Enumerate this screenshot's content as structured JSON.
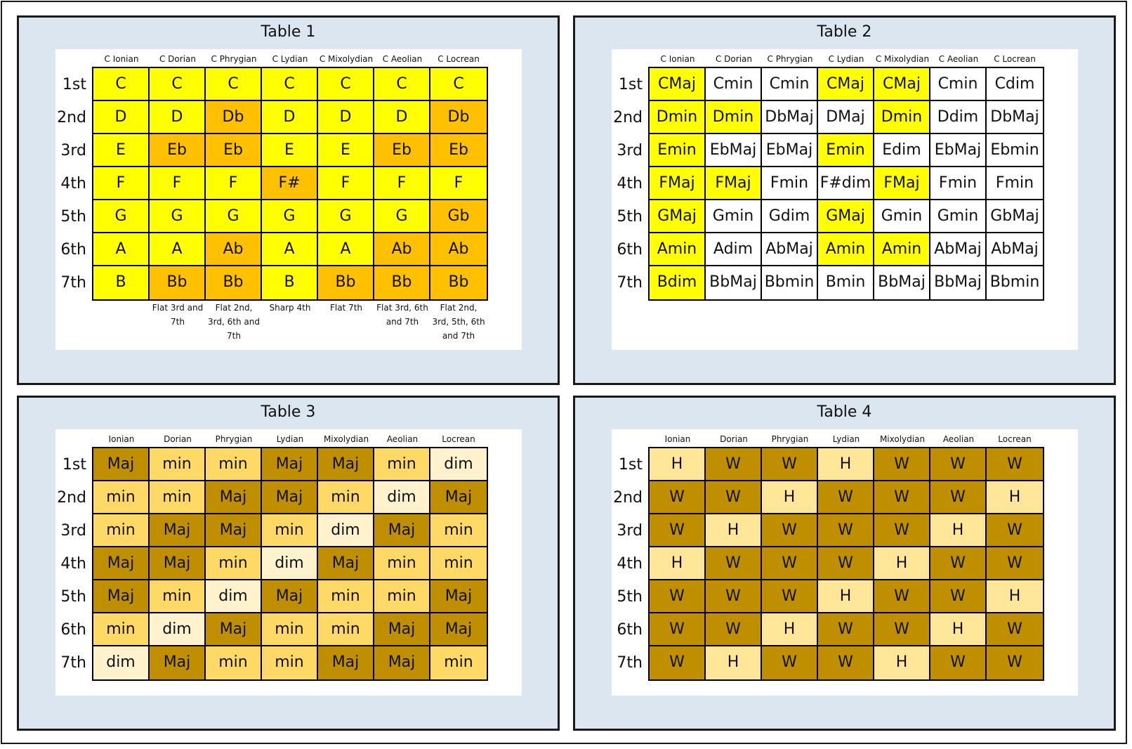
{
  "colors": {
    "yellow": "#ffff00",
    "orange": "#ffc000",
    "white": "#ffffff",
    "maj": "#bf8f00",
    "min": "#ffd966",
    "dim": "#fff2cc",
    "whole": "#bf8f00",
    "half": "#ffe699",
    "panel_bg": "#dce6f1"
  },
  "row_labels": [
    "1st",
    "2nd",
    "3rd",
    "4th",
    "5th",
    "6th",
    "7th"
  ],
  "tables": [
    {
      "id": "table-1",
      "title": "Table 1",
      "columns": [
        "C Ionian",
        "C Dorian",
        "C Phrygian",
        "C Lydian",
        "C Mixolydian",
        "C Aeolian",
        "C Locrean"
      ],
      "rows": [
        [
          {
            "v": "C",
            "c": "yellow"
          },
          {
            "v": "C",
            "c": "yellow"
          },
          {
            "v": "C",
            "c": "yellow"
          },
          {
            "v": "C",
            "c": "yellow"
          },
          {
            "v": "C",
            "c": "yellow"
          },
          {
            "v": "C",
            "c": "yellow"
          },
          {
            "v": "C",
            "c": "yellow"
          }
        ],
        [
          {
            "v": "D",
            "c": "yellow"
          },
          {
            "v": "D",
            "c": "yellow"
          },
          {
            "v": "Db",
            "c": "orange"
          },
          {
            "v": "D",
            "c": "yellow"
          },
          {
            "v": "D",
            "c": "yellow"
          },
          {
            "v": "D",
            "c": "yellow"
          },
          {
            "v": "Db",
            "c": "orange"
          }
        ],
        [
          {
            "v": "E",
            "c": "yellow"
          },
          {
            "v": "Eb",
            "c": "orange"
          },
          {
            "v": "Eb",
            "c": "orange"
          },
          {
            "v": "E",
            "c": "yellow"
          },
          {
            "v": "E",
            "c": "yellow"
          },
          {
            "v": "Eb",
            "c": "orange"
          },
          {
            "v": "Eb",
            "c": "orange"
          }
        ],
        [
          {
            "v": "F",
            "c": "yellow"
          },
          {
            "v": "F",
            "c": "yellow"
          },
          {
            "v": "F",
            "c": "yellow"
          },
          {
            "v": "F#",
            "c": "orange"
          },
          {
            "v": "F",
            "c": "yellow"
          },
          {
            "v": "F",
            "c": "yellow"
          },
          {
            "v": "F",
            "c": "yellow"
          }
        ],
        [
          {
            "v": "G",
            "c": "yellow"
          },
          {
            "v": "G",
            "c": "yellow"
          },
          {
            "v": "G",
            "c": "yellow"
          },
          {
            "v": "G",
            "c": "yellow"
          },
          {
            "v": "G",
            "c": "yellow"
          },
          {
            "v": "G",
            "c": "yellow"
          },
          {
            "v": "Gb",
            "c": "orange"
          }
        ],
        [
          {
            "v": "A",
            "c": "yellow"
          },
          {
            "v": "A",
            "c": "yellow"
          },
          {
            "v": "Ab",
            "c": "orange"
          },
          {
            "v": "A",
            "c": "yellow"
          },
          {
            "v": "A",
            "c": "yellow"
          },
          {
            "v": "Ab",
            "c": "orange"
          },
          {
            "v": "Ab",
            "c": "orange"
          }
        ],
        [
          {
            "v": "B",
            "c": "yellow"
          },
          {
            "v": "Bb",
            "c": "orange"
          },
          {
            "v": "Bb",
            "c": "orange"
          },
          {
            "v": "B",
            "c": "yellow"
          },
          {
            "v": "Bb",
            "c": "orange"
          },
          {
            "v": "Bb",
            "c": "orange"
          },
          {
            "v": "Bb",
            "c": "orange"
          }
        ]
      ],
      "notes": [
        "",
        "Flat 3rd and 7th",
        "Flat 2nd, 3rd, 6th and 7th",
        "Sharp 4th",
        "Flat 7th",
        "Flat 3rd, 6th and 7th",
        "Flat 2nd, 3rd, 5th, 6th and 7th"
      ]
    },
    {
      "id": "table-2",
      "title": "Table 2",
      "columns": [
        "C Ionian",
        "C Dorian",
        "C Phrygian",
        "C Lydian",
        "C Mixolydian",
        "C Aeolian",
        "C Locrean"
      ],
      "rows": [
        [
          {
            "v": "CMaj",
            "c": "yellow"
          },
          {
            "v": "Cmin",
            "c": "white"
          },
          {
            "v": "Cmin",
            "c": "white"
          },
          {
            "v": "CMaj",
            "c": "yellow"
          },
          {
            "v": "CMaj",
            "c": "yellow"
          },
          {
            "v": "Cmin",
            "c": "white"
          },
          {
            "v": "Cdim",
            "c": "white"
          }
        ],
        [
          {
            "v": "Dmin",
            "c": "yellow"
          },
          {
            "v": "Dmin",
            "c": "yellow"
          },
          {
            "v": "DbMaj",
            "c": "white"
          },
          {
            "v": "DMaj",
            "c": "white"
          },
          {
            "v": "Dmin",
            "c": "yellow"
          },
          {
            "v": "Ddim",
            "c": "white"
          },
          {
            "v": "DbMaj",
            "c": "white"
          }
        ],
        [
          {
            "v": "Emin",
            "c": "yellow"
          },
          {
            "v": "EbMaj",
            "c": "white"
          },
          {
            "v": "EbMaj",
            "c": "white"
          },
          {
            "v": "Emin",
            "c": "yellow"
          },
          {
            "v": "Edim",
            "c": "white"
          },
          {
            "v": "EbMaj",
            "c": "white"
          },
          {
            "v": "Ebmin",
            "c": "white"
          }
        ],
        [
          {
            "v": "FMaj",
            "c": "yellow"
          },
          {
            "v": "FMaj",
            "c": "yellow"
          },
          {
            "v": "Fmin",
            "c": "white"
          },
          {
            "v": "F#dim",
            "c": "white"
          },
          {
            "v": "FMaj",
            "c": "yellow"
          },
          {
            "v": "Fmin",
            "c": "white"
          },
          {
            "v": "Fmin",
            "c": "white"
          }
        ],
        [
          {
            "v": "GMaj",
            "c": "yellow"
          },
          {
            "v": "Gmin",
            "c": "white"
          },
          {
            "v": "Gdim",
            "c": "white"
          },
          {
            "v": "GMaj",
            "c": "yellow"
          },
          {
            "v": "Gmin",
            "c": "white"
          },
          {
            "v": "Gmin",
            "c": "white"
          },
          {
            "v": "GbMaj",
            "c": "white"
          }
        ],
        [
          {
            "v": "Amin",
            "c": "yellow"
          },
          {
            "v": "Adim",
            "c": "white"
          },
          {
            "v": "AbMaj",
            "c": "white"
          },
          {
            "v": "Amin",
            "c": "yellow"
          },
          {
            "v": "Amin",
            "c": "yellow"
          },
          {
            "v": "AbMaj",
            "c": "white"
          },
          {
            "v": "AbMaj",
            "c": "white"
          }
        ],
        [
          {
            "v": "Bdim",
            "c": "yellow"
          },
          {
            "v": "BbMaj",
            "c": "white"
          },
          {
            "v": "Bbmin",
            "c": "white"
          },
          {
            "v": "Bmin",
            "c": "white"
          },
          {
            "v": "BbMaj",
            "c": "white"
          },
          {
            "v": "BbMaj",
            "c": "white"
          },
          {
            "v": "Bbmin",
            "c": "white"
          }
        ]
      ],
      "notes": []
    },
    {
      "id": "table-3",
      "title": "Table 3",
      "columns": [
        "Ionian",
        "Dorian",
        "Phrygian",
        "Lydian",
        "Mixolydian",
        "Aeolian",
        "Locrean"
      ],
      "rows": [
        [
          {
            "v": "Maj",
            "c": "maj"
          },
          {
            "v": "min",
            "c": "min"
          },
          {
            "v": "min",
            "c": "min"
          },
          {
            "v": "Maj",
            "c": "maj"
          },
          {
            "v": "Maj",
            "c": "maj"
          },
          {
            "v": "min",
            "c": "min"
          },
          {
            "v": "dim",
            "c": "dim"
          }
        ],
        [
          {
            "v": "min",
            "c": "min"
          },
          {
            "v": "min",
            "c": "min"
          },
          {
            "v": "Maj",
            "c": "maj"
          },
          {
            "v": "Maj",
            "c": "maj"
          },
          {
            "v": "min",
            "c": "min"
          },
          {
            "v": "dim",
            "c": "dim"
          },
          {
            "v": "Maj",
            "c": "maj"
          }
        ],
        [
          {
            "v": "min",
            "c": "min"
          },
          {
            "v": "Maj",
            "c": "maj"
          },
          {
            "v": "Maj",
            "c": "maj"
          },
          {
            "v": "min",
            "c": "min"
          },
          {
            "v": "dim",
            "c": "dim"
          },
          {
            "v": "Maj",
            "c": "maj"
          },
          {
            "v": "min",
            "c": "min"
          }
        ],
        [
          {
            "v": "Maj",
            "c": "maj"
          },
          {
            "v": "Maj",
            "c": "maj"
          },
          {
            "v": "min",
            "c": "min"
          },
          {
            "v": "dim",
            "c": "dim"
          },
          {
            "v": "Maj",
            "c": "maj"
          },
          {
            "v": "min",
            "c": "min"
          },
          {
            "v": "min",
            "c": "min"
          }
        ],
        [
          {
            "v": "Maj",
            "c": "maj"
          },
          {
            "v": "min",
            "c": "min"
          },
          {
            "v": "dim",
            "c": "dim"
          },
          {
            "v": "Maj",
            "c": "maj"
          },
          {
            "v": "min",
            "c": "min"
          },
          {
            "v": "min",
            "c": "min"
          },
          {
            "v": "Maj",
            "c": "maj"
          }
        ],
        [
          {
            "v": "min",
            "c": "min"
          },
          {
            "v": "dim",
            "c": "dim"
          },
          {
            "v": "Maj",
            "c": "maj"
          },
          {
            "v": "min",
            "c": "min"
          },
          {
            "v": "min",
            "c": "min"
          },
          {
            "v": "Maj",
            "c": "maj"
          },
          {
            "v": "Maj",
            "c": "maj"
          }
        ],
        [
          {
            "v": "dim",
            "c": "dim"
          },
          {
            "v": "Maj",
            "c": "maj"
          },
          {
            "v": "min",
            "c": "min"
          },
          {
            "v": "min",
            "c": "min"
          },
          {
            "v": "Maj",
            "c": "maj"
          },
          {
            "v": "Maj",
            "c": "maj"
          },
          {
            "v": "min",
            "c": "min"
          }
        ]
      ],
      "notes": []
    },
    {
      "id": "table-4",
      "title": "Table 4",
      "columns": [
        "Ionian",
        "Dorian",
        "Phrygian",
        "Lydian",
        "Mixolydian",
        "Aeolian",
        "Locrean"
      ],
      "rows": [
        [
          {
            "v": "H",
            "c": "half"
          },
          {
            "v": "W",
            "c": "whole"
          },
          {
            "v": "W",
            "c": "whole"
          },
          {
            "v": "H",
            "c": "half"
          },
          {
            "v": "W",
            "c": "whole"
          },
          {
            "v": "W",
            "c": "whole"
          },
          {
            "v": "W",
            "c": "whole"
          }
        ],
        [
          {
            "v": "W",
            "c": "whole"
          },
          {
            "v": "W",
            "c": "whole"
          },
          {
            "v": "H",
            "c": "half"
          },
          {
            "v": "W",
            "c": "whole"
          },
          {
            "v": "W",
            "c": "whole"
          },
          {
            "v": "W",
            "c": "whole"
          },
          {
            "v": "H",
            "c": "half"
          }
        ],
        [
          {
            "v": "W",
            "c": "whole"
          },
          {
            "v": "H",
            "c": "half"
          },
          {
            "v": "W",
            "c": "whole"
          },
          {
            "v": "W",
            "c": "whole"
          },
          {
            "v": "W",
            "c": "whole"
          },
          {
            "v": "H",
            "c": "half"
          },
          {
            "v": "W",
            "c": "whole"
          }
        ],
        [
          {
            "v": "H",
            "c": "half"
          },
          {
            "v": "W",
            "c": "whole"
          },
          {
            "v": "W",
            "c": "whole"
          },
          {
            "v": "W",
            "c": "whole"
          },
          {
            "v": "H",
            "c": "half"
          },
          {
            "v": "W",
            "c": "whole"
          },
          {
            "v": "W",
            "c": "whole"
          }
        ],
        [
          {
            "v": "W",
            "c": "whole"
          },
          {
            "v": "W",
            "c": "whole"
          },
          {
            "v": "W",
            "c": "whole"
          },
          {
            "v": "H",
            "c": "half"
          },
          {
            "v": "W",
            "c": "whole"
          },
          {
            "v": "W",
            "c": "whole"
          },
          {
            "v": "H",
            "c": "half"
          }
        ],
        [
          {
            "v": "W",
            "c": "whole"
          },
          {
            "v": "W",
            "c": "whole"
          },
          {
            "v": "H",
            "c": "half"
          },
          {
            "v": "W",
            "c": "whole"
          },
          {
            "v": "W",
            "c": "whole"
          },
          {
            "v": "H",
            "c": "half"
          },
          {
            "v": "W",
            "c": "whole"
          }
        ],
        [
          {
            "v": "W",
            "c": "whole"
          },
          {
            "v": "H",
            "c": "half"
          },
          {
            "v": "W",
            "c": "whole"
          },
          {
            "v": "W",
            "c": "whole"
          },
          {
            "v": "H",
            "c": "half"
          },
          {
            "v": "W",
            "c": "whole"
          },
          {
            "v": "W",
            "c": "whole"
          }
        ]
      ],
      "notes": []
    }
  ]
}
